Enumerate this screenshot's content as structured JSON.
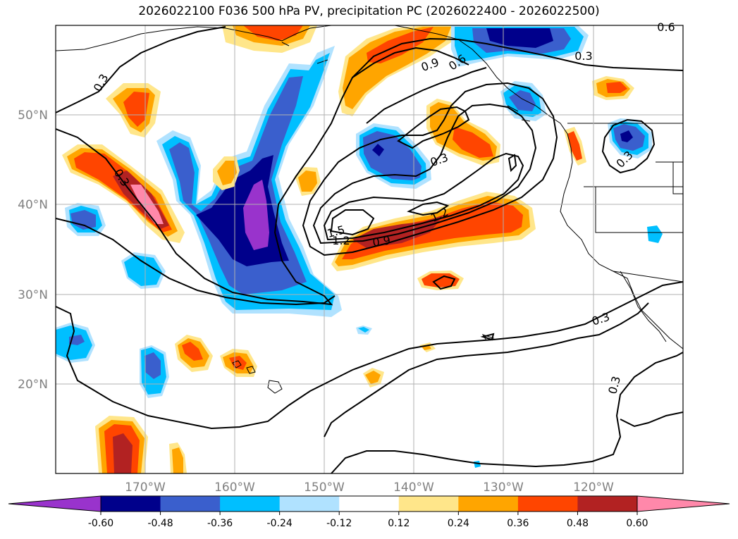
{
  "title": "2026022100 F036 500 hPa PV, precipitation PC (2026022400 - 2026022500)",
  "map": {
    "lon_range": [
      -180,
      -110
    ],
    "lat_range": [
      10,
      60
    ],
    "lat_ticks": [
      {
        "value": 50,
        "label": "50°N"
      },
      {
        "value": 40,
        "label": "40°N"
      },
      {
        "value": 30,
        "label": "30°N"
      },
      {
        "value": 20,
        "label": "20°N"
      }
    ],
    "lon_ticks": [
      {
        "value": -170,
        "label": "170°W"
      },
      {
        "value": -160,
        "label": "160°W"
      },
      {
        "value": -150,
        "label": "150°W"
      },
      {
        "value": -140,
        "label": "140°W"
      },
      {
        "value": -130,
        "label": "130°W"
      },
      {
        "value": -120,
        "label": "120°W"
      }
    ],
    "grid": true,
    "pv_contour_labels": [
      "0.3",
      "0.3",
      "0.3",
      "0.3",
      "0.3",
      "0.3",
      "0.3",
      "0.6",
      "0.6",
      "0.9",
      "0.9",
      "1.2",
      "1.2",
      "1.5"
    ]
  },
  "colorbar": {
    "tick_labels": [
      "-0.60",
      "-0.48",
      "-0.36",
      "-0.24",
      "-0.12",
      "0.12",
      "0.24",
      "0.36",
      "0.48",
      "0.60"
    ],
    "colors": [
      "#9933CC",
      "#00008B",
      "#3A5FCD",
      "#00BFFF",
      "#B0E2FF",
      "#FFFFFF",
      "#FFE68A",
      "#FFA500",
      "#FF4500",
      "#B22222",
      "#FF88AA"
    ],
    "extend": "both"
  }
}
